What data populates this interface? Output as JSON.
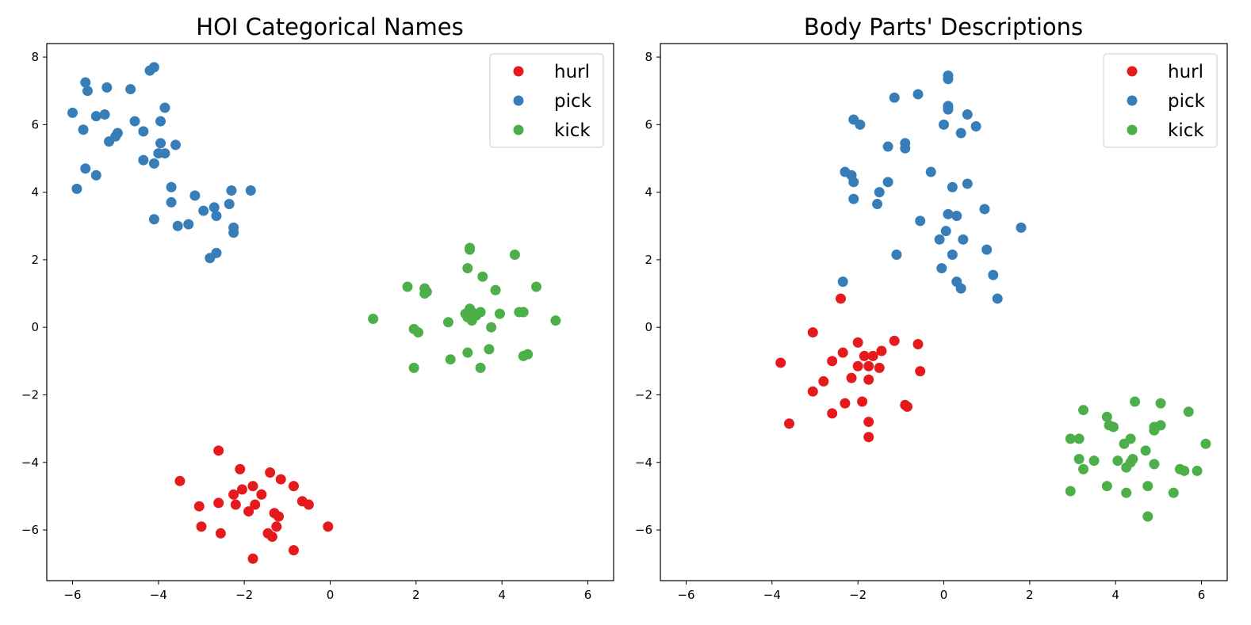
{
  "chart_data": [
    {
      "type": "scatter",
      "title": "HOI Categorical Names",
      "xlabel": "",
      "ylabel": "",
      "xlim": [
        -6.6,
        6.6
      ],
      "ylim": [
        -7.5,
        8.4
      ],
      "xticks": [
        -6,
        -4,
        -2,
        0,
        2,
        4,
        6
      ],
      "yticks": [
        -6,
        -4,
        -2,
        0,
        2,
        4,
        6,
        8
      ],
      "xtick_labels": [
        "−6",
        "−4",
        "−2",
        "0",
        "2",
        "4",
        "6"
      ],
      "ytick_labels": [
        "−6",
        "−4",
        "−2",
        "0",
        "2",
        "4",
        "6",
        "8"
      ],
      "grid": false,
      "legend": "top-right",
      "series": [
        {
          "name": "hurl",
          "color": "#e41a1c",
          "points": [
            [
              -2.6,
              -3.65
            ],
            [
              -2.1,
              -4.2
            ],
            [
              -3.5,
              -4.55
            ],
            [
              -1.4,
              -4.3
            ],
            [
              -1.15,
              -4.5
            ],
            [
              -0.85,
              -4.7
            ],
            [
              -1.8,
              -4.7
            ],
            [
              -2.05,
              -4.8
            ],
            [
              -2.25,
              -4.95
            ],
            [
              -1.6,
              -4.95
            ],
            [
              -2.6,
              -5.2
            ],
            [
              -2.2,
              -5.25
            ],
            [
              -1.75,
              -5.25
            ],
            [
              -0.65,
              -5.15
            ],
            [
              -0.5,
              -5.25
            ],
            [
              -3.05,
              -5.3
            ],
            [
              -1.3,
              -5.5
            ],
            [
              -1.2,
              -5.6
            ],
            [
              -1.9,
              -5.45
            ],
            [
              -3.0,
              -5.9
            ],
            [
              -1.25,
              -5.9
            ],
            [
              -2.55,
              -6.1
            ],
            [
              -1.45,
              -6.1
            ],
            [
              -1.35,
              -6.2
            ],
            [
              -0.05,
              -5.9
            ],
            [
              -0.85,
              -6.6
            ],
            [
              -1.8,
              -6.85
            ]
          ]
        },
        {
          "name": "pick",
          "color": "#377eb8",
          "points": [
            [
              -5.7,
              7.25
            ],
            [
              -5.65,
              7.0
            ],
            [
              -5.2,
              7.1
            ],
            [
              -4.65,
              7.05
            ],
            [
              -4.2,
              7.6
            ],
            [
              -4.1,
              7.7
            ],
            [
              -6.0,
              6.35
            ],
            [
              -5.25,
              6.3
            ],
            [
              -5.45,
              6.25
            ],
            [
              -3.85,
              6.5
            ],
            [
              -4.55,
              6.1
            ],
            [
              -3.95,
              6.1
            ],
            [
              -5.75,
              5.85
            ],
            [
              -4.95,
              5.75
            ],
            [
              -4.35,
              5.8
            ],
            [
              -5.0,
              5.65
            ],
            [
              -5.15,
              5.5
            ],
            [
              -3.95,
              5.45
            ],
            [
              -3.6,
              5.4
            ],
            [
              -3.85,
              5.15
            ],
            [
              -4.0,
              5.15
            ],
            [
              -4.35,
              4.95
            ],
            [
              -4.1,
              4.85
            ],
            [
              -5.7,
              4.7
            ],
            [
              -5.45,
              4.5
            ],
            [
              -5.9,
              4.1
            ],
            [
              -3.7,
              4.15
            ],
            [
              -2.3,
              4.05
            ],
            [
              -1.85,
              4.05
            ],
            [
              -3.15,
              3.9
            ],
            [
              -3.7,
              3.7
            ],
            [
              -2.35,
              3.65
            ],
            [
              -2.7,
              3.55
            ],
            [
              -2.95,
              3.45
            ],
            [
              -2.65,
              3.3
            ],
            [
              -4.1,
              3.2
            ],
            [
              -3.3,
              3.05
            ],
            [
              -3.55,
              3.0
            ],
            [
              -2.25,
              2.95
            ],
            [
              -2.25,
              2.8
            ],
            [
              -2.65,
              2.2
            ],
            [
              -2.8,
              2.05
            ]
          ]
        },
        {
          "name": "kick",
          "color": "#4daf4a",
          "points": [
            [
              3.25,
              2.35
            ],
            [
              3.25,
              2.3
            ],
            [
              4.3,
              2.15
            ],
            [
              3.2,
              1.75
            ],
            [
              3.55,
              1.5
            ],
            [
              2.2,
              1.15
            ],
            [
              1.8,
              1.2
            ],
            [
              2.25,
              1.05
            ],
            [
              2.2,
              1.0
            ],
            [
              3.85,
              1.1
            ],
            [
              4.8,
              1.2
            ],
            [
              3.25,
              0.55
            ],
            [
              3.5,
              0.45
            ],
            [
              3.3,
              0.45
            ],
            [
              3.15,
              0.4
            ],
            [
              3.2,
              0.3
            ],
            [
              3.3,
              0.2
            ],
            [
              3.4,
              0.35
            ],
            [
              3.95,
              0.4
            ],
            [
              4.4,
              0.45
            ],
            [
              4.5,
              0.45
            ],
            [
              1.0,
              0.25
            ],
            [
              2.75,
              0.15
            ],
            [
              5.25,
              0.2
            ],
            [
              3.75,
              0.0
            ],
            [
              1.95,
              -0.05
            ],
            [
              2.05,
              -0.15
            ],
            [
              3.2,
              -0.75
            ],
            [
              3.7,
              -0.65
            ],
            [
              4.6,
              -0.8
            ],
            [
              4.5,
              -0.85
            ],
            [
              2.8,
              -0.95
            ],
            [
              1.95,
              -1.2
            ],
            [
              3.5,
              -1.2
            ]
          ]
        }
      ]
    },
    {
      "type": "scatter",
      "title": "Body Parts' Descriptions",
      "xlabel": "",
      "ylabel": "",
      "xlim": [
        -6.6,
        6.6
      ],
      "ylim": [
        -7.5,
        8.4
      ],
      "xticks": [
        -6,
        -4,
        -2,
        0,
        2,
        4,
        6
      ],
      "yticks": [
        -6,
        -4,
        -2,
        0,
        2,
        4,
        6,
        8
      ],
      "xtick_labels": [
        "−6",
        "−4",
        "−2",
        "0",
        "2",
        "4",
        "6"
      ],
      "ytick_labels": [
        "−6",
        "−4",
        "−2",
        "0",
        "2",
        "4",
        "6",
        "8"
      ],
      "grid": false,
      "legend": "top-right",
      "series": [
        {
          "name": "hurl",
          "color": "#e41a1c",
          "points": [
            [
              -2.4,
              0.85
            ],
            [
              -3.05,
              -0.15
            ],
            [
              -1.15,
              -0.4
            ],
            [
              -2.0,
              -0.45
            ],
            [
              -0.6,
              -0.5
            ],
            [
              -2.35,
              -0.75
            ],
            [
              -1.45,
              -0.7
            ],
            [
              -1.65,
              -0.85
            ],
            [
              -1.85,
              -0.85
            ],
            [
              -2.6,
              -1.0
            ],
            [
              -2.0,
              -1.15
            ],
            [
              -1.75,
              -1.15
            ],
            [
              -1.5,
              -1.2
            ],
            [
              -3.8,
              -1.05
            ],
            [
              -0.55,
              -1.3
            ],
            [
              -2.15,
              -1.5
            ],
            [
              -2.8,
              -1.6
            ],
            [
              -1.75,
              -1.55
            ],
            [
              -3.05,
              -1.9
            ],
            [
              -2.3,
              -2.25
            ],
            [
              -1.9,
              -2.2
            ],
            [
              -0.9,
              -2.3
            ],
            [
              -0.85,
              -2.35
            ],
            [
              -2.6,
              -2.55
            ],
            [
              -1.75,
              -2.8
            ],
            [
              -3.6,
              -2.85
            ],
            [
              -1.75,
              -3.25
            ]
          ]
        },
        {
          "name": "pick",
          "color": "#377eb8",
          "points": [
            [
              0.1,
              7.45
            ],
            [
              0.1,
              7.35
            ],
            [
              -0.6,
              6.9
            ],
            [
              -1.15,
              6.8
            ],
            [
              0.1,
              6.55
            ],
            [
              0.1,
              6.45
            ],
            [
              0.55,
              6.3
            ],
            [
              -2.1,
              6.15
            ],
            [
              -1.95,
              6.0
            ],
            [
              0.0,
              6.0
            ],
            [
              0.75,
              5.95
            ],
            [
              0.4,
              5.75
            ],
            [
              -0.9,
              5.45
            ],
            [
              -1.3,
              5.35
            ],
            [
              -0.9,
              5.3
            ],
            [
              -2.3,
              4.6
            ],
            [
              -2.15,
              4.5
            ],
            [
              -0.3,
              4.6
            ],
            [
              -2.1,
              4.3
            ],
            [
              -1.3,
              4.3
            ],
            [
              0.2,
              4.15
            ],
            [
              0.55,
              4.25
            ],
            [
              -1.5,
              4.0
            ],
            [
              -2.1,
              3.8
            ],
            [
              -1.55,
              3.65
            ],
            [
              0.95,
              3.5
            ],
            [
              0.1,
              3.35
            ],
            [
              0.3,
              3.3
            ],
            [
              -0.55,
              3.15
            ],
            [
              1.8,
              2.95
            ],
            [
              0.05,
              2.85
            ],
            [
              -0.1,
              2.6
            ],
            [
              0.45,
              2.6
            ],
            [
              1.0,
              2.3
            ],
            [
              0.2,
              2.15
            ],
            [
              -1.1,
              2.15
            ],
            [
              -0.05,
              1.75
            ],
            [
              1.15,
              1.55
            ],
            [
              -2.35,
              1.35
            ],
            [
              0.3,
              1.35
            ],
            [
              0.4,
              1.15
            ],
            [
              1.25,
              0.85
            ]
          ]
        },
        {
          "name": "kick",
          "color": "#4daf4a",
          "points": [
            [
              4.45,
              -2.2
            ],
            [
              5.05,
              -2.25
            ],
            [
              3.25,
              -2.45
            ],
            [
              5.7,
              -2.5
            ],
            [
              3.8,
              -2.65
            ],
            [
              3.85,
              -2.9
            ],
            [
              3.95,
              -2.95
            ],
            [
              4.9,
              -2.95
            ],
            [
              5.05,
              -2.9
            ],
            [
              4.9,
              -3.05
            ],
            [
              4.35,
              -3.3
            ],
            [
              4.2,
              -3.45
            ],
            [
              2.95,
              -3.3
            ],
            [
              3.15,
              -3.3
            ],
            [
              6.1,
              -3.45
            ],
            [
              4.7,
              -3.65
            ],
            [
              3.15,
              -3.9
            ],
            [
              3.5,
              -3.95
            ],
            [
              4.05,
              -3.95
            ],
            [
              4.4,
              -3.9
            ],
            [
              4.35,
              -4.0
            ],
            [
              4.25,
              -4.15
            ],
            [
              4.9,
              -4.05
            ],
            [
              3.25,
              -4.2
            ],
            [
              5.5,
              -4.2
            ],
            [
              5.6,
              -4.25
            ],
            [
              5.9,
              -4.25
            ],
            [
              3.8,
              -4.7
            ],
            [
              4.75,
              -4.7
            ],
            [
              2.95,
              -4.85
            ],
            [
              4.25,
              -4.9
            ],
            [
              5.35,
              -4.9
            ],
            [
              4.75,
              -5.6
            ]
          ]
        }
      ]
    }
  ]
}
